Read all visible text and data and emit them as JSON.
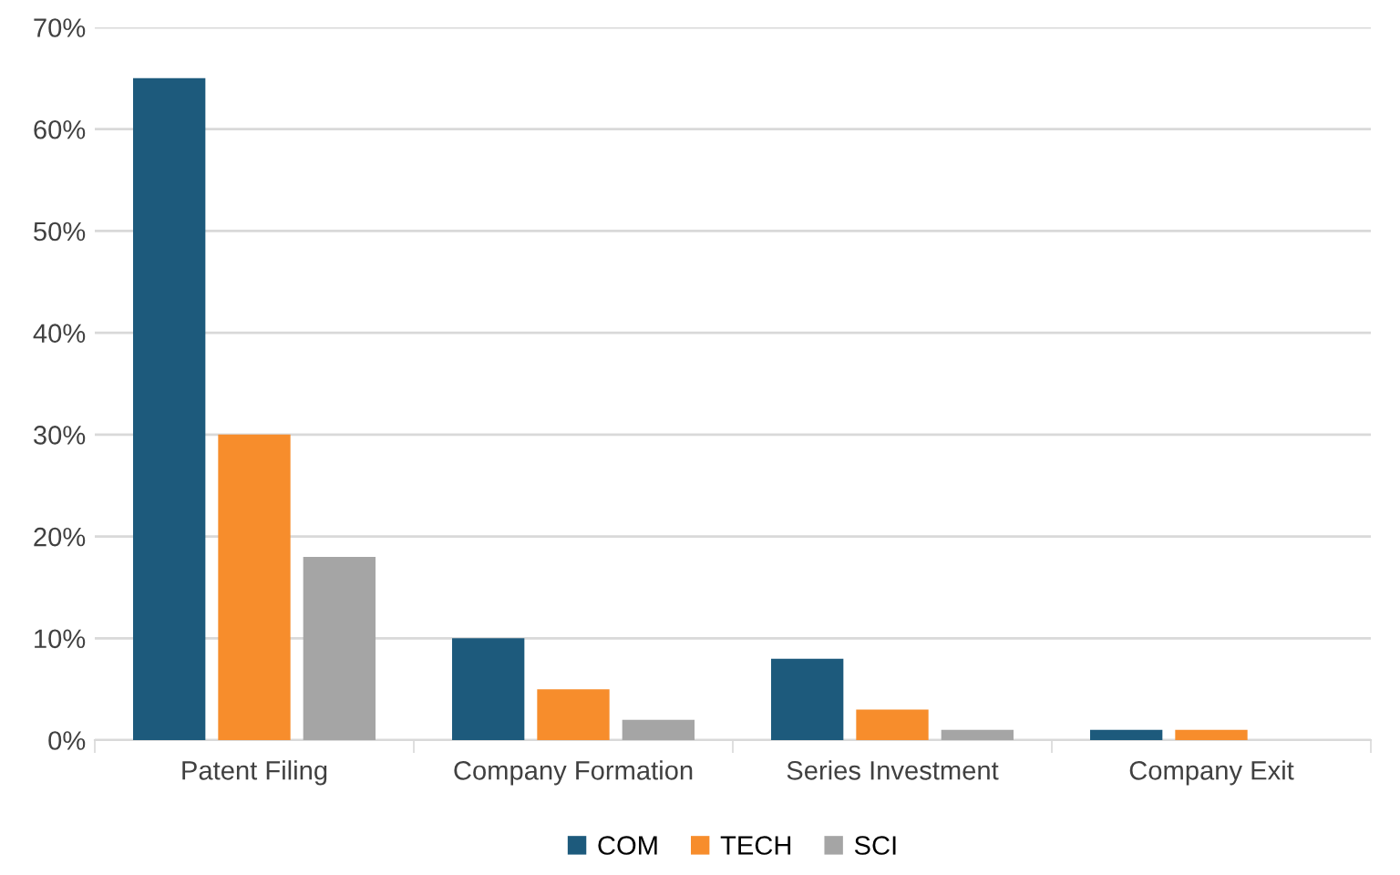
{
  "chart_data": {
    "type": "bar",
    "categories": [
      "Patent Filing",
      "Company Formation",
      "Series Investment",
      "Company Exit"
    ],
    "series": [
      {
        "name": "COM",
        "color": "#1d5a7c",
        "values": [
          65,
          10,
          8,
          1
        ]
      },
      {
        "name": "TECH",
        "color": "#f78d2c",
        "values": [
          30,
          5,
          3,
          1
        ]
      },
      {
        "name": "SCI",
        "color": "#a5a5a5",
        "values": [
          18,
          2,
          1,
          0
        ]
      }
    ],
    "ylim": [
      0,
      70
    ],
    "yticks": [
      {
        "value": 0,
        "label": "0%"
      },
      {
        "value": 10,
        "label": "10%"
      },
      {
        "value": 20,
        "label": "20%"
      },
      {
        "value": 30,
        "label": "30%"
      },
      {
        "value": 40,
        "label": "40%"
      },
      {
        "value": 50,
        "label": "50%"
      },
      {
        "value": 60,
        "label": "60%"
      },
      {
        "value": 70,
        "label": "70%"
      }
    ],
    "grid": "y",
    "legend": "bottom"
  }
}
